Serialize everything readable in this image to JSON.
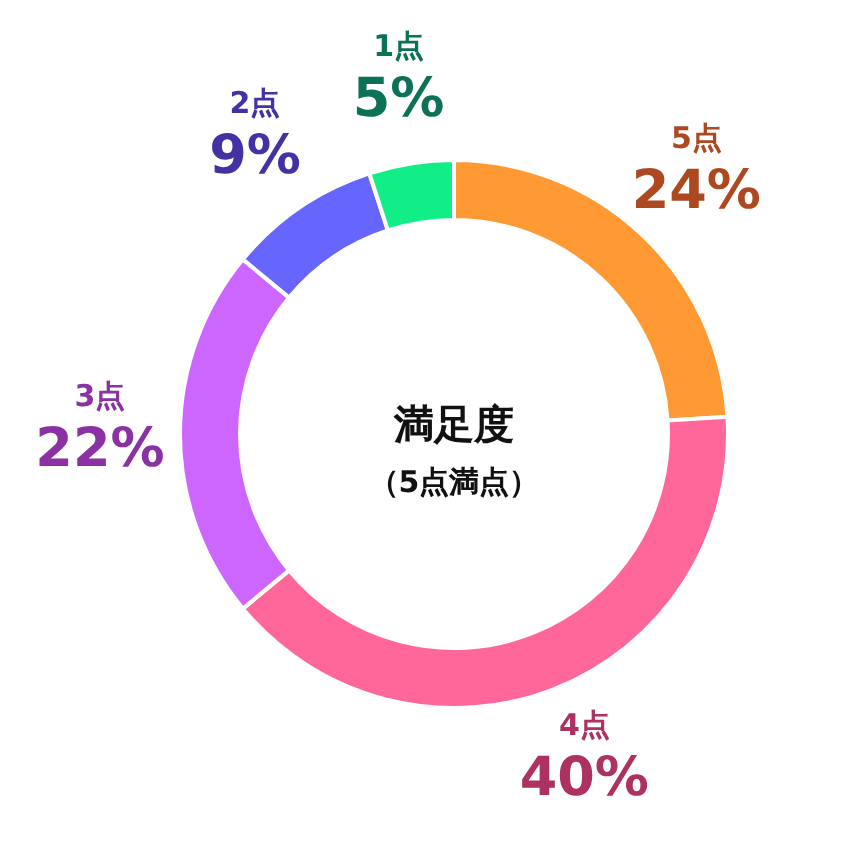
{
  "chart_data": {
    "type": "donut",
    "title": "満足度",
    "subtitle": "（5点満点）",
    "categories": [
      "5点",
      "4点",
      "3点",
      "2点",
      "1点"
    ],
    "values": [
      24,
      40,
      22,
      9,
      5
    ],
    "colors": [
      "#ff9933",
      "#ff6699",
      "#cc66ff",
      "#6666ff",
      "#11ee88"
    ],
    "value_labels": [
      "24%",
      "40%",
      "22%",
      "9%",
      "5%"
    ]
  }
}
